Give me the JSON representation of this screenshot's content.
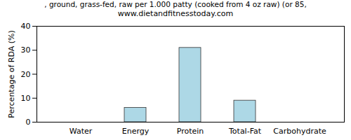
{
  "chart_data": {
    "type": "bar",
    "title": ", ground, grass-fed, raw per 1.000 patty (cooked from 4 oz raw) (or 85,",
    "subtitle": "www.dietandfitnesstoday.com",
    "y_label": "Percentage of RDA (%)",
    "categories": [
      "Water",
      "Energy",
      "Protein",
      "Total-Fat",
      "Carbohydrate"
    ],
    "values": [
      0,
      6,
      31,
      9,
      0
    ],
    "color": "#add8e6",
    "ylim": [
      0,
      40
    ],
    "yticks": [
      0,
      10,
      20,
      30,
      40
    ],
    "grid": false
  }
}
